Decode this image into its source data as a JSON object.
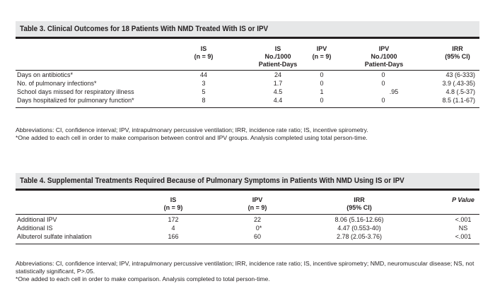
{
  "table3": {
    "caption": "Table 3. Clinical Outcomes for 18 Patients With NMD Treated With IS or IPV",
    "headers": [
      {
        "l1": "",
        "l2": "IS",
        "l3": "(n = 9)"
      },
      {
        "l1": "IS",
        "l2": "No./1000",
        "l3": "Patient-Days"
      },
      {
        "l1": "",
        "l2": "IPV",
        "l3": "(n = 9)"
      },
      {
        "l1": "IPV",
        "l2": "No./1000",
        "l3": "Patient-Days"
      },
      {
        "l1": "",
        "l2": "IRR",
        "l3": "(95% CI)"
      }
    ],
    "rows": [
      {
        "label": "Days on antibiotics*",
        "is": "44",
        "is_rate": "24",
        "ipv": "0",
        "ipv_rate": "0",
        "irr": "43 (6-333)"
      },
      {
        "label": "No. of pulmonary infections*",
        "is": "3",
        "is_rate": "1.7",
        "ipv": "0",
        "ipv_rate": "0",
        "irr": "3.9 (.43-35)"
      },
      {
        "label": "School days missed for respiratory illness",
        "is": "5",
        "is_rate": "4.5",
        "ipv": "1",
        "ipv_rate": ".95",
        "irr": "4.8 (.5-37)"
      },
      {
        "label": "Days hospitalized for pulmonary function*",
        "is": "8",
        "is_rate": "4.4",
        "ipv": "0",
        "ipv_rate": "0",
        "irr": "8.5 (1.1-67)"
      }
    ],
    "abbreviations": "Abbreviations: CI, confidence interval; IPV, intrapulmonary percussive ventilation; IRR, incidence rate ratio; IS, incentive spirometry.",
    "footnote": "*One added to each cell in order to make comparison between control and IPV groups. Analysis completed using total person-time."
  },
  "table4": {
    "caption": "Table 4. Supplemental Treatments Required Because of Pulmonary Symptoms in Patients With NMD Using IS or IPV",
    "headers": [
      {
        "l1": "IS",
        "l2": "(n = 9)"
      },
      {
        "l1": "IPV",
        "l2": "(n = 9)"
      },
      {
        "l1": "IRR",
        "l2": "(95% CI)"
      },
      {
        "l1": "",
        "l2": "P Value"
      }
    ],
    "rows": [
      {
        "label": "Additional IPV",
        "is": "172",
        "ipv": "22",
        "irr": "8.06 (5.16-12.66)",
        "p": "<.001"
      },
      {
        "label": "Additional IS",
        "is": "4",
        "ipv": "0*",
        "irr": "4.47 (0.553-40)",
        "p": "NS"
      },
      {
        "label": "Albuterol sulfate inhalation",
        "is": "166",
        "ipv": "60",
        "irr": "2.78 (2.05-3.76)",
        "p": "<.001"
      }
    ],
    "abbreviations": "Abbreviations: CI, confidence interval; IPV, intrapulmonary percussive ventilation; IRR, incidence rate ratio; IS, incentive spirometry; NMD, neuromuscular disease; NS, not statistically significant, P>.05.",
    "footnote": "*One added to each cell in order to make comparison. Analysis completed to total person-time."
  }
}
